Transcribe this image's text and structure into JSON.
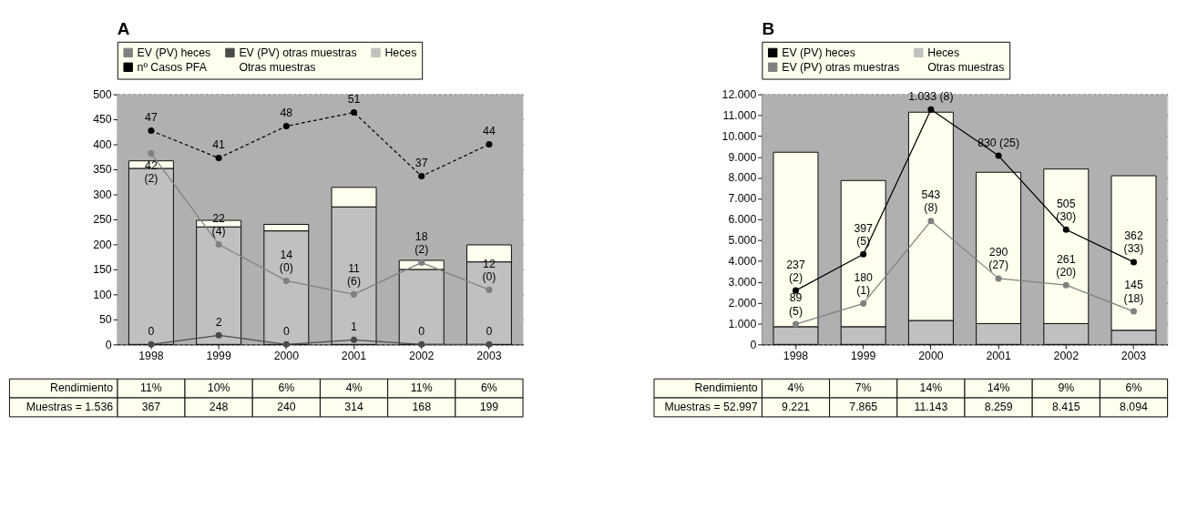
{
  "chart_data": [
    {
      "type": "bar",
      "title": "A",
      "stacked": true,
      "categories": [
        "1998",
        "1999",
        "2000",
        "2001",
        "2002",
        "2003"
      ],
      "ylim": [
        0,
        500
      ],
      "yticks": [
        0,
        50,
        100,
        150,
        200,
        250,
        300,
        350,
        400,
        450,
        500
      ],
      "y2lim": [
        0,
        55
      ],
      "grid": "y",
      "legend": "top",
      "marker": "circle",
      "tick_labels": [
        "x",
        "y"
      ],
      "series": [
        {
          "name": "EV (PV) heces",
          "type": "line",
          "axis": "y2",
          "color": "#808080",
          "values": [
            42,
            22,
            14,
            11,
            18,
            12
          ],
          "value_labels": [
            "42\n(2)",
            "22\n(4)",
            "14\n(0)",
            "11\n(6)",
            "18\n(2)",
            "12\n(0)"
          ]
        },
        {
          "name": "EV (PV) otras muestras",
          "type": "line",
          "axis": "y2",
          "color": "#4a4a4a",
          "values": [
            0,
            2,
            0,
            1,
            0,
            0
          ],
          "value_labels": [
            "0",
            "2",
            "0",
            "1",
            "0",
            "0"
          ]
        },
        {
          "name": "Heces",
          "color": "#c0c0c0",
          "values": [
            352,
            235,
            227,
            275,
            150,
            165
          ]
        },
        {
          "name": "nº Casos PFA",
          "type": "line",
          "axis": "y2",
          "line_style": "dashed",
          "color": "#000000",
          "values": [
            47,
            41,
            48,
            51,
            37,
            44
          ],
          "value_labels": [
            "47",
            "41",
            "48",
            "51",
            "37",
            "44"
          ]
        },
        {
          "name": "Otras muestras",
          "color": "#ffffee",
          "values": [
            15,
            13,
            13,
            39,
            18,
            34
          ]
        }
      ],
      "annotations": [
        "Rendimiento",
        "11%",
        "10%",
        "6%",
        "4%",
        "11%",
        "6%",
        "Muestras = 1.536",
        "367",
        "248",
        "240",
        "314",
        "168",
        "199"
      ]
    },
    {
      "type": "bar",
      "title": "B",
      "stacked": true,
      "categories": [
        "1998",
        "1999",
        "2000",
        "2001",
        "2002",
        "2003"
      ],
      "ylim": [
        0,
        12000
      ],
      "yticks": [
        {
          "value": 0,
          "label": "0"
        },
        {
          "value": 1000,
          "label": "1.000"
        },
        {
          "value": 2000,
          "label": "2.000"
        },
        {
          "value": 3000,
          "label": "3.000"
        },
        {
          "value": 4000,
          "label": "4.000"
        },
        {
          "value": 5000,
          "label": "5.000"
        },
        {
          "value": 6000,
          "label": "6.000"
        },
        {
          "value": 7000,
          "label": "7.000"
        },
        {
          "value": 8000,
          "label": "8.000"
        },
        {
          "value": 9000,
          "label": "9.000"
        },
        {
          "value": 10000,
          "label": "10.000"
        },
        {
          "value": 11000,
          "label": "11.000"
        },
        {
          "value": 12000,
          "label": "12.000"
        }
      ],
      "y2lim": [
        0,
        1100
      ],
      "grid": "y",
      "legend": "top",
      "marker": "circle",
      "tick_labels": [
        "x",
        "y"
      ],
      "series": [
        {
          "name": "EV (PV) heces",
          "type": "line",
          "axis": "y2",
          "color": "#000000",
          "values": [
            237,
            397,
            1033,
            830,
            505,
            362
          ],
          "value_labels": [
            "237\n(2)",
            "397\n(5)",
            "1.033 (8)",
            "830 (25)",
            "505\n(30)",
            "362\n(33)"
          ]
        },
        {
          "name": "Heces",
          "color": "#c0c0c0",
          "values": [
            850,
            850,
            1150,
            1000,
            1000,
            680
          ]
        },
        {
          "name": "EV (PV) otras muestras",
          "type": "line",
          "axis": "y2",
          "color": "#808080",
          "values": [
            89,
            180,
            543,
            290,
            261,
            145
          ],
          "value_labels": [
            "89\n(5)",
            "180\n(1)",
            "543\n(8)",
            "290\n(27)",
            "261\n(20)",
            "145\n(18)"
          ]
        },
        {
          "name": "Otras muestras",
          "color": "#ffffee",
          "values": [
            8371,
            7015,
            9993,
            7259,
            7415,
            7414
          ]
        }
      ],
      "annotations": [
        "Rendimiento",
        "4%",
        "7%",
        "14%",
        "14%",
        "9%",
        "6%",
        "Muestras = 52.997",
        "9.221",
        "7.865",
        "11.143",
        "8.259",
        "8.415",
        "8.094"
      ]
    }
  ]
}
